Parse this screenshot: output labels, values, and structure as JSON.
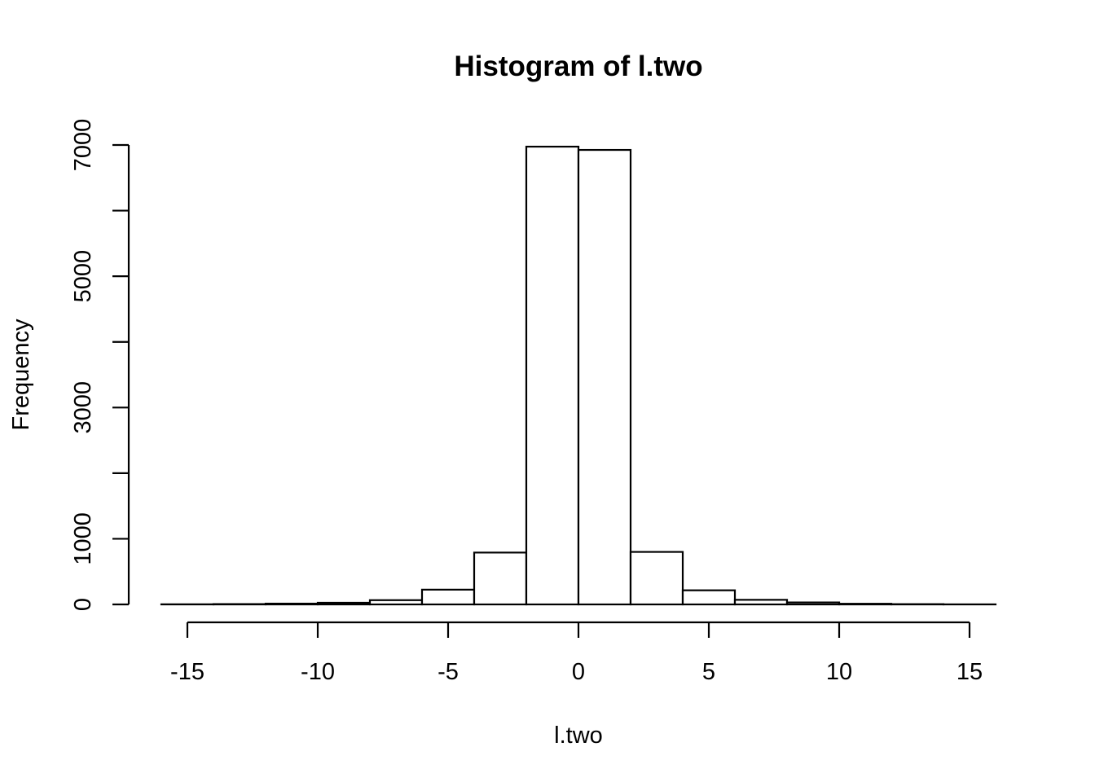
{
  "chart_data": {
    "type": "bar",
    "title": "Histogram of l.two",
    "xlabel": "l.two",
    "ylabel": "Frequency",
    "xlim": [
      -16,
      16
    ],
    "ylim": [
      0,
      7000
    ],
    "x_ticks": [
      -15,
      -10,
      -5,
      0,
      5,
      10,
      15
    ],
    "x_tick_labels": [
      "-15",
      "-10",
      "-5",
      "0",
      "5",
      "10",
      "15"
    ],
    "y_ticks": [
      0,
      1000,
      2000,
      3000,
      4000,
      5000,
      6000,
      7000
    ],
    "y_tick_labels": [
      "0",
      "1000",
      "",
      "3000",
      "",
      "5000",
      "",
      "7000"
    ],
    "bin_edges": [
      -16,
      -14,
      -12,
      -10,
      -8,
      -6,
      -4,
      -2,
      0,
      2,
      4,
      6,
      8,
      10,
      12,
      14,
      16
    ],
    "values": [
      2,
      5,
      12,
      25,
      65,
      225,
      790,
      6975,
      6925,
      800,
      215,
      70,
      30,
      10,
      4,
      1
    ],
    "grid": false,
    "legend": "none"
  }
}
